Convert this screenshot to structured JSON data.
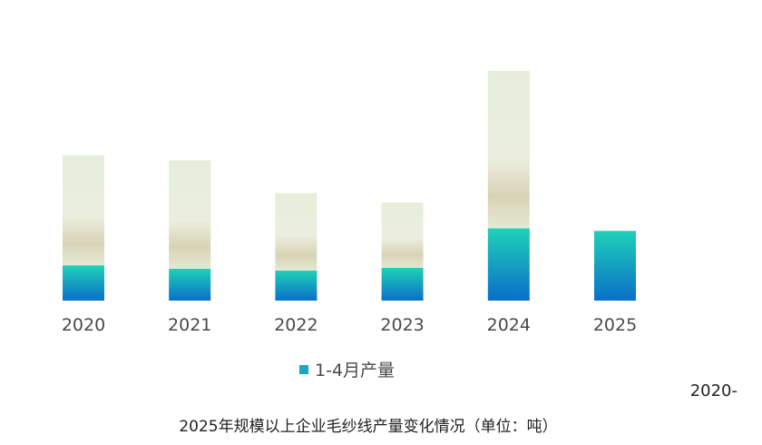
{
  "chart_data": {
    "type": "bar",
    "categories": [
      "2020",
      "2021",
      "2022",
      "2023",
      "2024",
      "2025"
    ],
    "series": [
      {
        "name": "1-4月产量",
        "values": [
          41,
          37,
          35,
          38,
          84,
          81
        ],
        "color_top": "#1fd1b8",
        "color_bottom": "#0a6fc9"
      },
      {
        "values": [
          128,
          126,
          90,
          76,
          183,
          null
        ],
        "color_top": "#e6eedb",
        "color_mid": "#d9d3b6",
        "color_bottom": "#e4e8d2"
      }
    ],
    "ylim": [
      0,
      285
    ],
    "grid": false,
    "legend_position": "bottom-center",
    "xlabel": "",
    "ylabel": "",
    "stacked": true
  },
  "caption_fragment": "2020-",
  "caption": "2025年规模以上企业毛纱线产量变化情况（单位：吨）",
  "legend": {
    "label": "1-4月产量",
    "color": "#1aa6c8"
  }
}
